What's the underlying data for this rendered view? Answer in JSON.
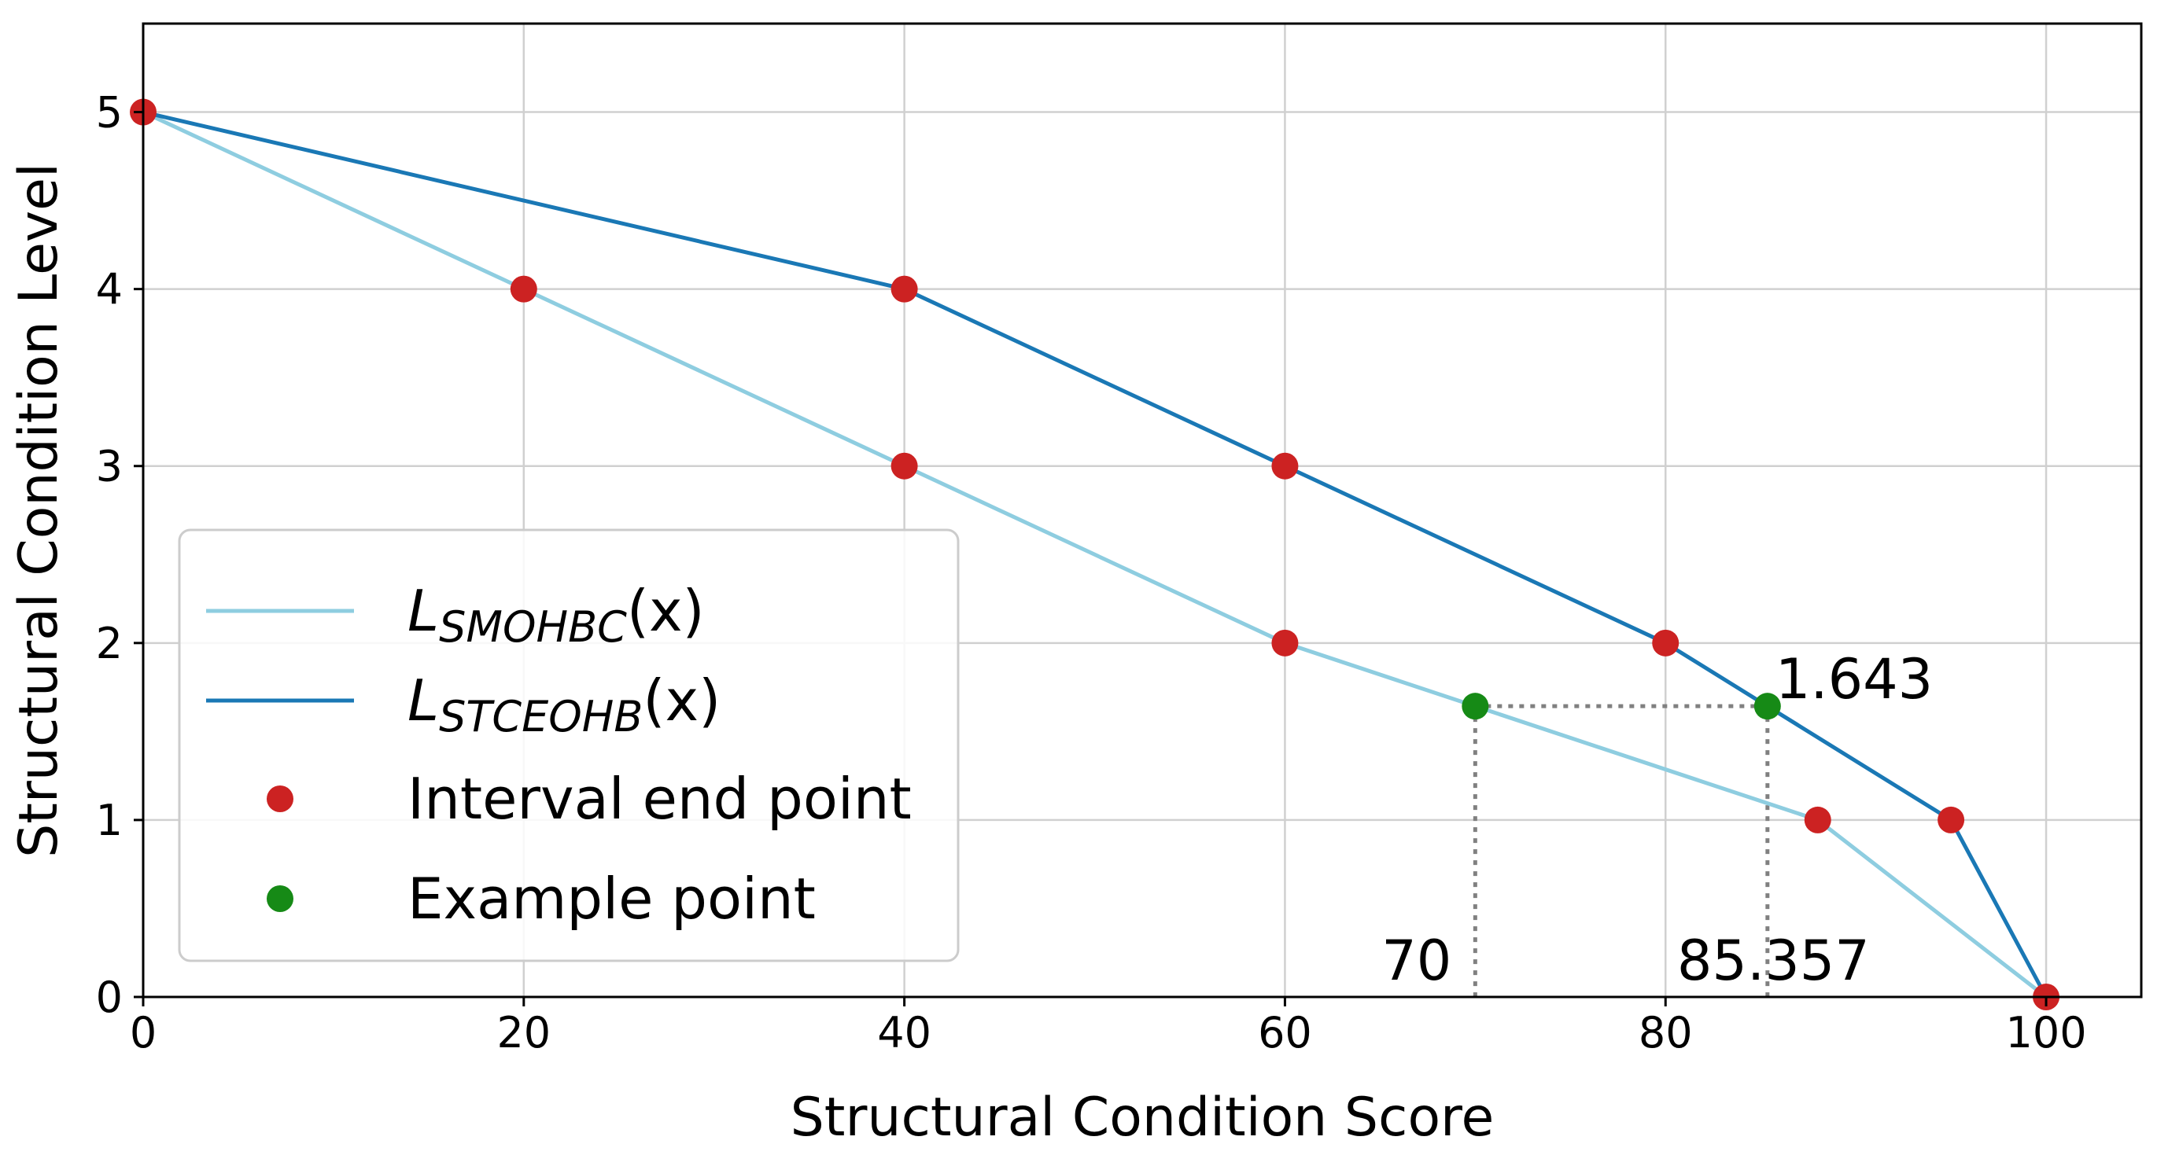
{
  "chart_data": {
    "type": "line",
    "xlabel": "Structural Condition Score",
    "ylabel": "Structural Condition Level",
    "xlim": [
      0,
      105
    ],
    "ylim": [
      0,
      5.5
    ],
    "xticks": [
      0,
      20,
      40,
      60,
      80,
      100
    ],
    "yticks": [
      0,
      1,
      2,
      3,
      4,
      5
    ],
    "grid": true,
    "legend_position": "lower-left",
    "colors": {
      "smohbc": "#8ecde0",
      "stceohb": "#1a78b5",
      "endpoint": "#cc2222",
      "example": "#168a16",
      "guide": "#808080",
      "grid": "#d0d0d0"
    },
    "series": [
      {
        "name": "L_SMOHBC(x)",
        "legend_main": "L",
        "legend_sub": "SMOHBC",
        "legend_suffix": "(x)",
        "x": [
          0,
          20,
          40,
          60,
          88,
          100
        ],
        "y": [
          5,
          4,
          3,
          2,
          1,
          0
        ]
      },
      {
        "name": "L_STCEOHB(x)",
        "legend_main": "L",
        "legend_sub": "STCEOHB",
        "legend_suffix": "(x)",
        "x": [
          0,
          40,
          60,
          80,
          95,
          100
        ],
        "y": [
          5,
          4,
          3,
          2,
          1,
          0
        ]
      }
    ],
    "interval_end_points": {
      "label": "Interval end point",
      "points": [
        [
          0,
          5
        ],
        [
          20,
          4
        ],
        [
          40,
          4
        ],
        [
          40,
          3
        ],
        [
          60,
          3
        ],
        [
          60,
          2
        ],
        [
          80,
          2
        ],
        [
          88,
          1
        ],
        [
          95,
          1
        ],
        [
          100,
          0
        ]
      ]
    },
    "example_points": {
      "label": "Example point",
      "points": [
        [
          70,
          1.643
        ],
        [
          85.357,
          1.643
        ]
      ]
    },
    "annotations": {
      "level_value": "1.643",
      "score_a": "70",
      "score_b": "85.357"
    }
  }
}
